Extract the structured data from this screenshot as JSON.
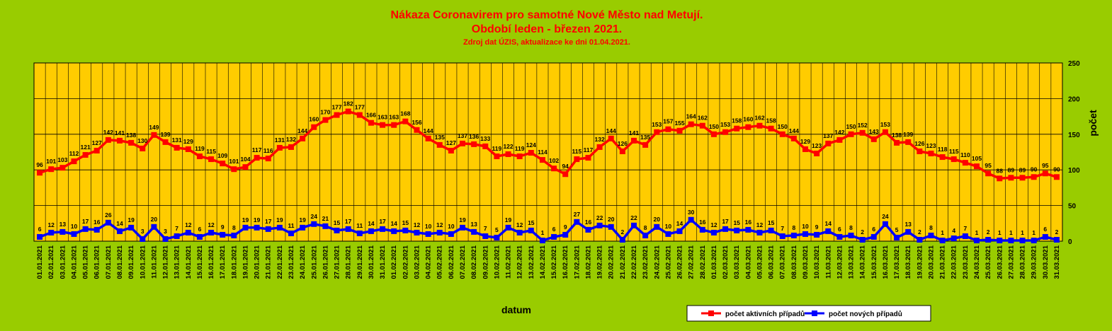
{
  "chart_data": {
    "type": "line",
    "title": "Nákaza Coronavirem pro samotné Nové Město nad Metují.",
    "subtitle": "Období leden - březen 2021.",
    "source": "Zdroj dat ÚZIS, aktualizace ke dni 01.04.2021.",
    "xlabel": "datum",
    "ylabel": "počet",
    "ylim": [
      0,
      250
    ],
    "yticks": [
      0,
      50,
      100,
      150,
      200,
      250
    ],
    "grid": true,
    "legend_position": "bottom-right",
    "x": [
      "01.01.2021",
      "02.01.2021",
      "03.01.2021",
      "04.01.2021",
      "05.01.2021",
      "06.01.2021",
      "07.01.2021",
      "08.01.2021",
      "09.01.2021",
      "10.01.2021",
      "11.01.2021",
      "12.01.2021",
      "13.01.2021",
      "14.01.2021",
      "15.01.2021",
      "16.01.2021",
      "17.01.2021",
      "18.01.2021",
      "19.01.2021",
      "20.01.2021",
      "21.01.2021",
      "22.01.2021",
      "23.01.2021",
      "24.01.2021",
      "25.01.2021",
      "26.01.2021",
      "27.01.2021",
      "28.01.2021",
      "29.01.2021",
      "30.01.2021",
      "31.01.2021",
      "01.02.2021",
      "02.02.2021",
      "03.02.2021",
      "04.02.2021",
      "05.02.2021",
      "06.02.2021",
      "07.02.2021",
      "08.02.2021",
      "09.02.2021",
      "10.02.2021",
      "11.02.2021",
      "12.02.2021",
      "13.02.2021",
      "14.02.2021",
      "15.02.2021",
      "16.02.2021",
      "17.02.2021",
      "18.02.2021",
      "19.02.2021",
      "20.02.2021",
      "21.02.2021",
      "22.02.2021",
      "23.02.2021",
      "24.02.2021",
      "25.02.2021",
      "26.02.2021",
      "27.02.2021",
      "28.02.2021",
      "01.03.2021",
      "02.03.2021",
      "03.03.2021",
      "04.03.2021",
      "05.03.2021",
      "06.03.2021",
      "07.03.2021",
      "08.03.2021",
      "09.03.2021",
      "10.03.2021",
      "11.03.2021",
      "12.03.2021",
      "13.03.2021",
      "14.03.2021",
      "15.03.2021",
      "16.03.2021",
      "17.03.2021",
      "18.03.2021",
      "19.03.2021",
      "20.03.2021",
      "21.03.2021",
      "22.03.2021",
      "23.03.2021",
      "24.03.2021",
      "25.03.2021",
      "26.03.2021",
      "27.03.2021",
      "28.03.2021",
      "29.03.2021",
      "30.03.2021",
      "31.03.2021"
    ],
    "series": [
      {
        "name": "počet aktivních případů",
        "color": "#ff0000",
        "values": [
          96,
          101,
          103,
          112,
          121,
          127,
          142,
          141,
          138,
          130,
          149,
          139,
          131,
          129,
          119,
          115,
          109,
          101,
          104,
          117,
          116,
          131,
          132,
          144,
          160,
          170,
          177,
          182,
          177,
          166,
          163,
          163,
          168,
          156,
          144,
          135,
          127,
          137,
          136,
          133,
          119,
          122,
          119,
          124,
          114,
          102,
          94,
          115,
          117,
          132,
          144,
          126,
          141,
          135,
          153,
          157,
          155,
          164,
          162,
          150,
          153,
          158,
          160,
          162,
          158,
          150,
          144,
          129,
          123,
          137,
          142,
          150,
          152,
          143,
          153,
          138,
          139,
          126,
          123,
          118,
          115,
          110,
          105,
          95,
          88,
          89,
          89,
          90,
          95,
          90
        ]
      },
      {
        "name": "počet nových případů",
        "color": "#0000ff",
        "values": [
          6,
          12,
          13,
          10,
          17,
          16,
          26,
          14,
          19,
          3,
          20,
          3,
          7,
          12,
          6,
          12,
          9,
          8,
          19,
          19,
          17,
          19,
          11,
          19,
          24,
          21,
          15,
          17,
          11,
          14,
          17,
          14,
          15,
          12,
          10,
          12,
          10,
          19,
          13,
          7,
          5,
          19,
          12,
          15,
          1,
          6,
          9,
          27,
          16,
          22,
          20,
          2,
          22,
          8,
          20,
          10,
          14,
          30,
          16,
          12,
          17,
          15,
          16,
          12,
          15,
          7,
          8,
          10,
          9,
          14,
          6,
          8,
          2,
          6,
          24,
          5,
          13,
          2,
          8,
          1,
          4,
          7,
          1,
          2,
          1,
          1,
          1,
          1,
          6,
          2
        ]
      }
    ]
  }
}
